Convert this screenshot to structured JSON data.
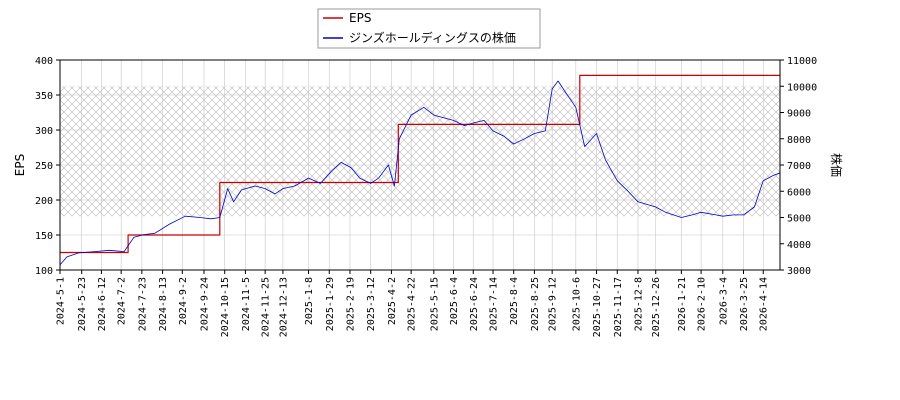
{
  "chart_data": {
    "type": "line",
    "legend": {
      "placement": "top-center",
      "entries": [
        "EPS",
        "ジンズホールディングスの株価"
      ]
    },
    "ylabel_left": "EPS",
    "ylabel_right": "株価",
    "ylim_left": [
      100,
      400
    ],
    "ylim_right": [
      3000,
      11000
    ],
    "yticks_left": [
      100,
      150,
      200,
      250,
      300,
      350,
      400
    ],
    "yticks_right": [
      3000,
      4000,
      5000,
      6000,
      7000,
      8000,
      9000,
      10000,
      11000
    ],
    "x_range": [
      "2024-05-01",
      "2026-05-01"
    ],
    "x_ticks": [
      "2024-5-1",
      "2024-5-23",
      "2024-6-12",
      "2024-7-2",
      "2024-7-23",
      "2024-8-13",
      "2024-9-2",
      "2024-9-24",
      "2024-10-15",
      "2024-11-5",
      "2024-11-25",
      "2024-12-13",
      "2025-1-8",
      "2025-1-29",
      "2025-2-19",
      "2025-3-12",
      "2025-4-2",
      "2025-4-22",
      "2025-5-15",
      "2025-6-4",
      "2025-6-24",
      "2025-7-14",
      "2025-8-4",
      "2025-8-25",
      "2025-9-12",
      "2025-10-6",
      "2025-10-27",
      "2025-11-17",
      "2025-12-8",
      "2025-12-26",
      "2026-1-21",
      "2026-2-10",
      "2026-3-4",
      "2026-3-25",
      "2026-4-14"
    ],
    "hatched_band_right": [
      5050,
      10000
    ],
    "grid": true,
    "series": [
      {
        "name": "EPS",
        "color": "#cc0000",
        "axis": "left",
        "step": true,
        "points": [
          [
            "2024-05-01",
            125
          ],
          [
            "2024-07-09",
            125
          ],
          [
            "2024-07-09",
            150
          ],
          [
            "2024-10-10",
            150
          ],
          [
            "2024-10-10",
            225
          ],
          [
            "2025-04-09",
            225
          ],
          [
            "2025-04-09",
            308
          ],
          [
            "2025-10-10",
            308
          ],
          [
            "2025-10-10",
            378
          ],
          [
            "2026-05-01",
            378
          ]
        ]
      },
      {
        "name": "ジンズホールディングスの株価",
        "color": "#0000cc",
        "axis": "right",
        "points": [
          [
            "2024-05-01",
            3200
          ],
          [
            "2024-05-08",
            3500
          ],
          [
            "2024-05-20",
            3650
          ],
          [
            "2024-06-05",
            3700
          ],
          [
            "2024-06-20",
            3750
          ],
          [
            "2024-07-05",
            3700
          ],
          [
            "2024-07-15",
            4250
          ],
          [
            "2024-07-25",
            4350
          ],
          [
            "2024-08-05",
            4400
          ],
          [
            "2024-08-20",
            4750
          ],
          [
            "2024-09-05",
            5050
          ],
          [
            "2024-09-20",
            5000
          ],
          [
            "2024-10-01",
            4950
          ],
          [
            "2024-10-10",
            5000
          ],
          [
            "2024-10-18",
            6100
          ],
          [
            "2024-10-24",
            5600
          ],
          [
            "2024-11-01",
            6050
          ],
          [
            "2024-11-15",
            6200
          ],
          [
            "2024-11-25",
            6100
          ],
          [
            "2024-12-05",
            5900
          ],
          [
            "2024-12-13",
            6100
          ],
          [
            "2024-12-25",
            6200
          ],
          [
            "2025-01-08",
            6500
          ],
          [
            "2025-01-20",
            6300
          ],
          [
            "2025-02-01",
            6800
          ],
          [
            "2025-02-10",
            7100
          ],
          [
            "2025-02-20",
            6900
          ],
          [
            "2025-03-01",
            6500
          ],
          [
            "2025-03-12",
            6300
          ],
          [
            "2025-03-20",
            6500
          ],
          [
            "2025-03-30",
            7000
          ],
          [
            "2025-04-05",
            6200
          ],
          [
            "2025-04-10",
            8000
          ],
          [
            "2025-04-22",
            8900
          ],
          [
            "2025-05-05",
            9200
          ],
          [
            "2025-05-15",
            8900
          ],
          [
            "2025-06-04",
            8700
          ],
          [
            "2025-06-15",
            8500
          ],
          [
            "2025-06-24",
            8600
          ],
          [
            "2025-07-05",
            8700
          ],
          [
            "2025-07-14",
            8300
          ],
          [
            "2025-07-25",
            8100
          ],
          [
            "2025-08-04",
            7800
          ],
          [
            "2025-08-15",
            8000
          ],
          [
            "2025-08-25",
            8200
          ],
          [
            "2025-09-05",
            8300
          ],
          [
            "2025-09-12",
            9900
          ],
          [
            "2025-09-18",
            10200
          ],
          [
            "2025-09-25",
            9800
          ],
          [
            "2025-10-06",
            9200
          ],
          [
            "2025-10-15",
            7700
          ],
          [
            "2025-10-27",
            8200
          ],
          [
            "2025-11-05",
            7200
          ],
          [
            "2025-11-17",
            6400
          ],
          [
            "2025-11-28",
            6000
          ],
          [
            "2025-12-08",
            5600
          ],
          [
            "2025-12-26",
            5400
          ],
          [
            "2026-01-05",
            5200
          ],
          [
            "2026-01-21",
            5000
          ],
          [
            "2026-02-01",
            5100
          ],
          [
            "2026-02-10",
            5200
          ],
          [
            "2026-02-25",
            5100
          ],
          [
            "2026-03-04",
            5050
          ],
          [
            "2026-03-15",
            5100
          ],
          [
            "2026-03-25",
            5100
          ],
          [
            "2026-04-05",
            5400
          ],
          [
            "2026-04-14",
            6400
          ],
          [
            "2026-04-24",
            6600
          ],
          [
            "2026-05-01",
            6700
          ]
        ]
      }
    ]
  }
}
